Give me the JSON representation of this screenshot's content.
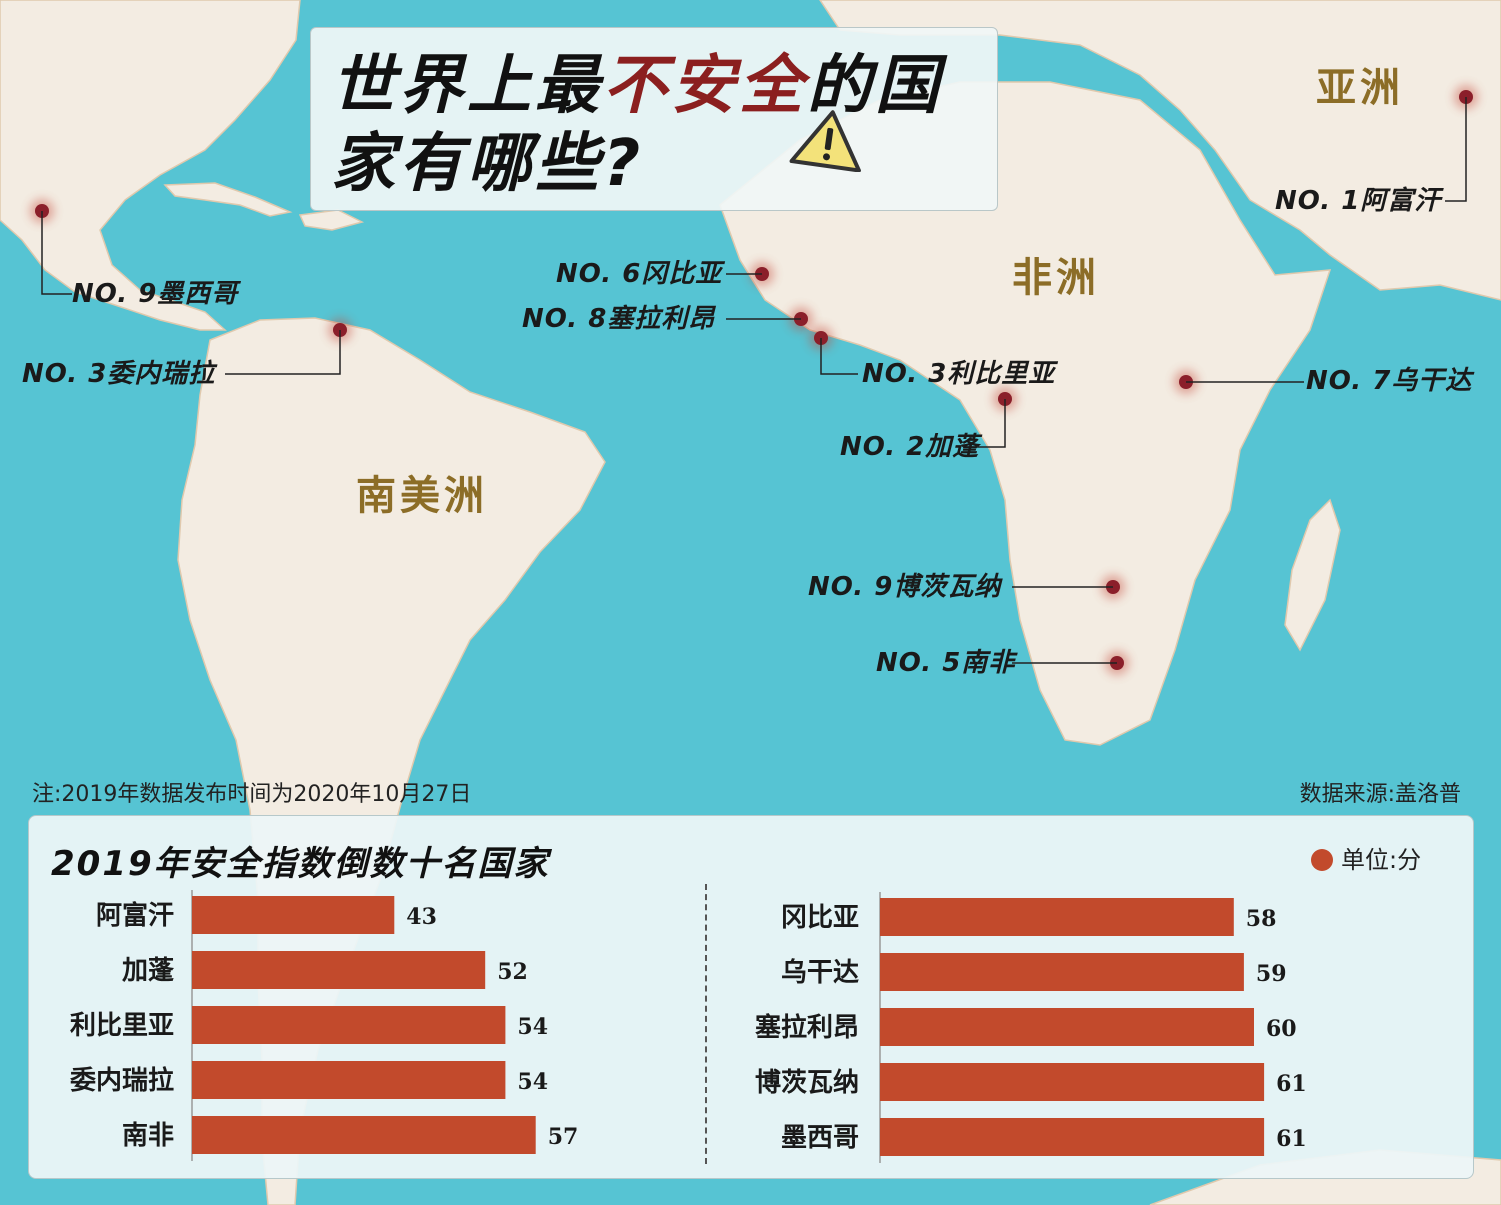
{
  "title": {
    "line1_a": "世界上最",
    "line1_hl": "不安全",
    "line1_b": "的国",
    "line2": "家有哪些?"
  },
  "continents": {
    "asia": "亚洲",
    "africa": "非洲",
    "south_america": "南美洲"
  },
  "markers": [
    {
      "id": "afghanistan",
      "text": "NO. 1阿富汗"
    },
    {
      "id": "mexico",
      "text": "NO. 9墨西哥"
    },
    {
      "id": "venezuela",
      "text": "NO. 3委内瑞拉"
    },
    {
      "id": "gambia",
      "text": "NO. 6冈比亚"
    },
    {
      "id": "sierra-leone",
      "text": "NO. 8塞拉利昂"
    },
    {
      "id": "liberia",
      "text": "NO. 3利比里亚"
    },
    {
      "id": "uganda",
      "text": "NO. 7乌干达"
    },
    {
      "id": "gabon",
      "text": "NO. 2加蓬"
    },
    {
      "id": "botswana",
      "text": "NO. 9博茨瓦纳"
    },
    {
      "id": "south-africa",
      "text": "NO. 5南非"
    }
  ],
  "footer": {
    "note": "注:2019年数据发布时间为2020年10月27日",
    "source": "数据来源:盖洛普"
  },
  "colors": {
    "bar": "#c24a2c",
    "marker": "#8b1f2a",
    "title_highlight": "#8b1f1f",
    "continent": "#8c6d27"
  },
  "warning_icon": "warning-triangle-icon",
  "chart_data": {
    "type": "bar",
    "orientation": "horizontal",
    "title": "2019年安全指数倒数十名国家",
    "unit": "单位:分",
    "xlim": [
      0,
      70
    ],
    "groups": [
      {
        "categories": [
          "阿富汗",
          "加蓬",
          "利比里亚",
          "委内瑞拉",
          "南非"
        ],
        "values": [
          43,
          52,
          54,
          54,
          57
        ]
      },
      {
        "categories": [
          "冈比亚",
          "乌干达",
          "塞拉利昂",
          "博茨瓦纳",
          "墨西哥"
        ],
        "values": [
          58,
          59,
          60,
          61,
          61
        ]
      }
    ]
  }
}
